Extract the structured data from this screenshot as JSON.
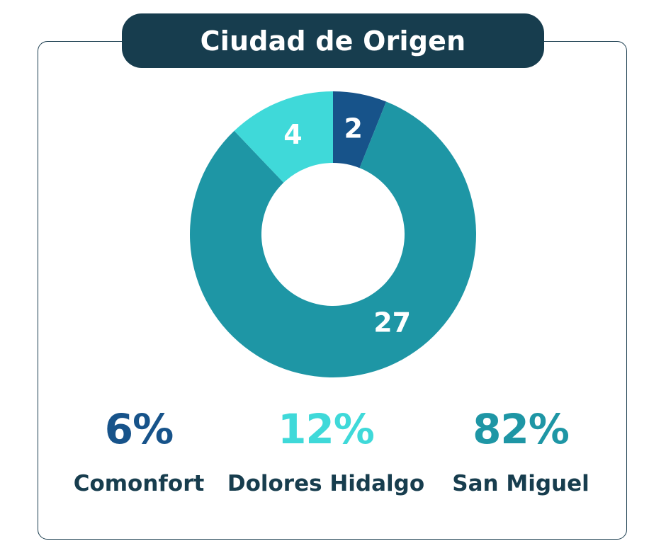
{
  "title": "Ciudad de Origen",
  "chart_data": {
    "type": "pie",
    "title": "Ciudad de Origen",
    "categories": [
      "Comonfort",
      "Dolores Hidalgo",
      "San Miguel"
    ],
    "values": [
      2,
      4,
      27
    ],
    "value_labels": [
      "2",
      "4",
      "27"
    ],
    "percent_labels": [
      "6%",
      "12%",
      "82%"
    ],
    "colors": [
      "#17538a",
      "#3fd9d9",
      "#1e96a5"
    ],
    "donut": true,
    "legend_position": "bottom"
  },
  "legend": [
    {
      "pct": "6%",
      "name": "Comonfort",
      "color": "#17538a"
    },
    {
      "pct": "12%",
      "name": "Dolores Hidalgo",
      "color": "#3fd9d9"
    },
    {
      "pct": "82%",
      "name": "San Miguel",
      "color": "#1e96a5"
    }
  ]
}
